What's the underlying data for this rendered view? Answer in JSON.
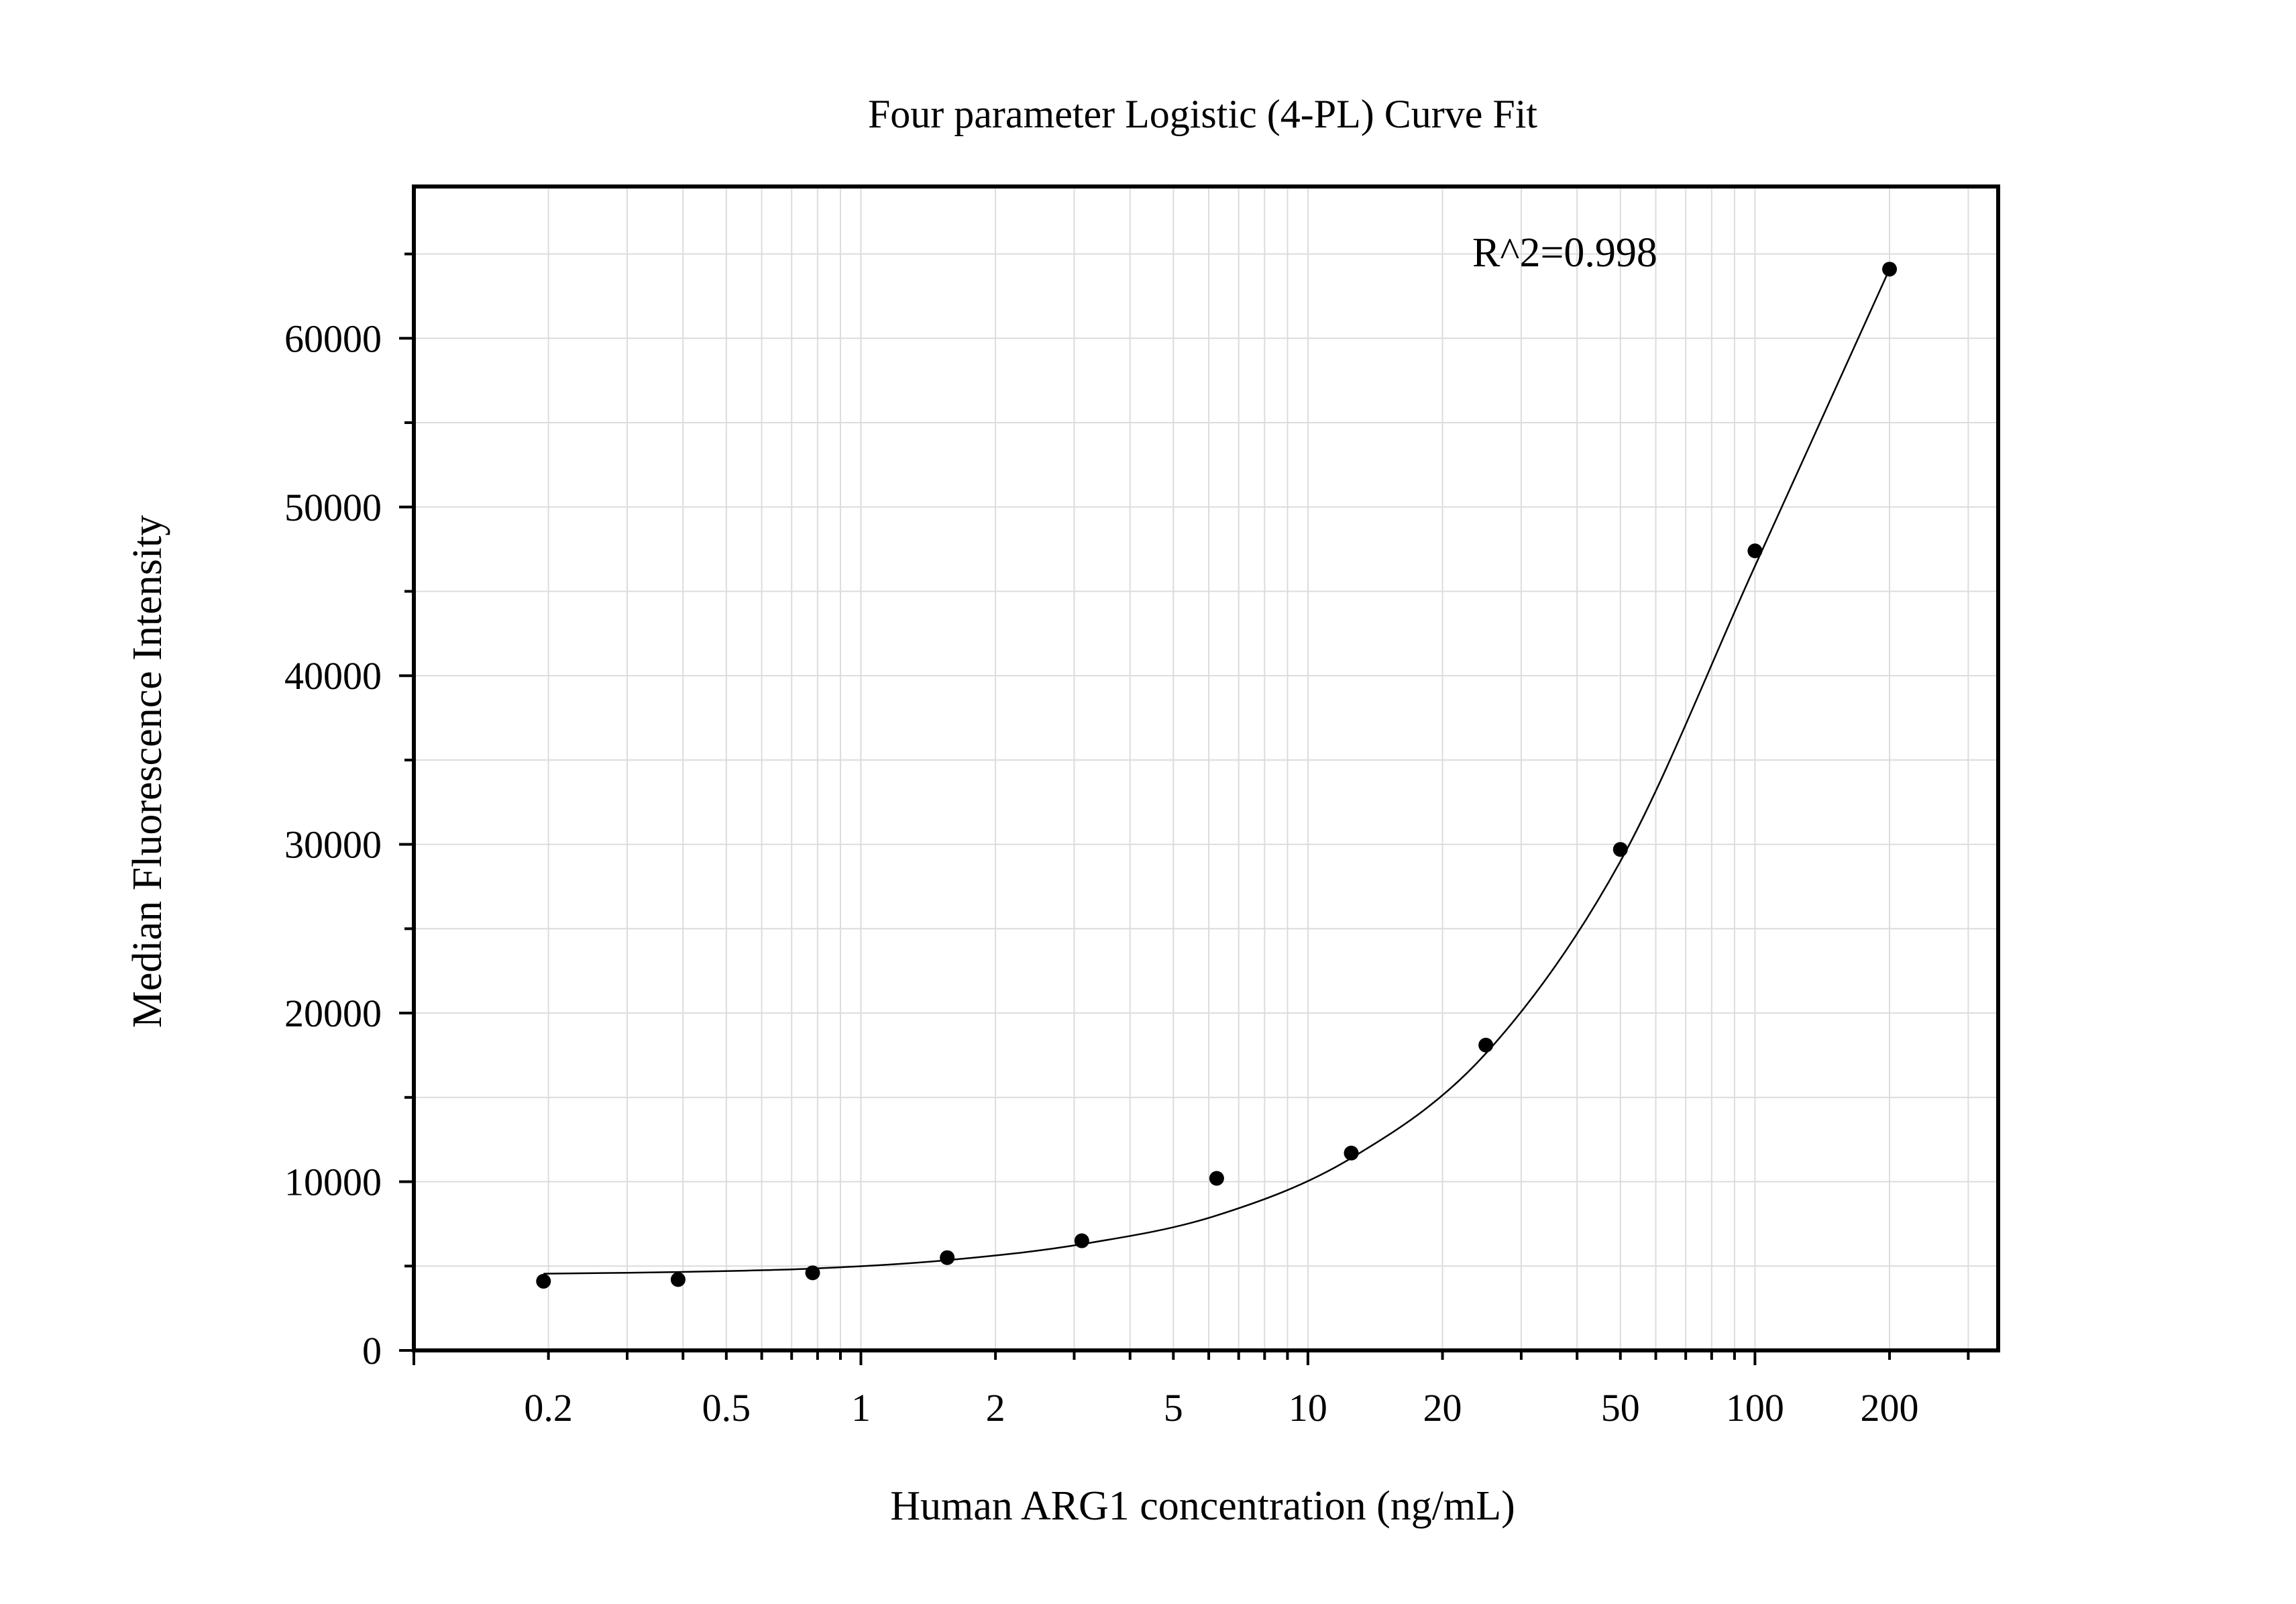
{
  "chart_data": {
    "type": "scatter",
    "title": "Four parameter Logistic (4-PL) Curve Fit",
    "xlabel": "Human ARG1 concentration (ng/mL)",
    "ylabel": "Median Fluorescence Intensity",
    "x_scale": "log",
    "xlim": [
      0.1,
      350
    ],
    "ylim": [
      0,
      69000
    ],
    "grid": true,
    "x_ticks": [
      {
        "value": 0.2,
        "label": "0.2"
      },
      {
        "value": 0.5,
        "label": "0.5"
      },
      {
        "value": 1,
        "label": "1"
      },
      {
        "value": 2,
        "label": "2"
      },
      {
        "value": 5,
        "label": "5"
      },
      {
        "value": 10,
        "label": "10"
      },
      {
        "value": 20,
        "label": "20"
      },
      {
        "value": 50,
        "label": "50"
      },
      {
        "value": 100,
        "label": "100"
      },
      {
        "value": 200,
        "label": "200"
      }
    ],
    "y_ticks": [
      {
        "value": 0,
        "label": "0"
      },
      {
        "value": 10000,
        "label": "10000"
      },
      {
        "value": 20000,
        "label": "20000"
      },
      {
        "value": 30000,
        "label": "30000"
      },
      {
        "value": 40000,
        "label": "40000"
      },
      {
        "value": 50000,
        "label": "50000"
      },
      {
        "value": 60000,
        "label": "60000"
      }
    ],
    "points": [
      {
        "x": 0.195,
        "y": 4100
      },
      {
        "x": 0.39,
        "y": 4200
      },
      {
        "x": 0.78,
        "y": 4600
      },
      {
        "x": 1.56,
        "y": 5500
      },
      {
        "x": 3.12,
        "y": 6500
      },
      {
        "x": 6.25,
        "y": 10200
      },
      {
        "x": 12.5,
        "y": 11700
      },
      {
        "x": 25,
        "y": 18100
      },
      {
        "x": 50,
        "y": 29700
      },
      {
        "x": 100,
        "y": 47400
      },
      {
        "x": 200,
        "y": 64100
      }
    ],
    "fit_curve": [
      {
        "x": 0.195,
        "y": 4550
      },
      {
        "x": 0.39,
        "y": 4650
      },
      {
        "x": 0.78,
        "y": 4850
      },
      {
        "x": 1.56,
        "y": 5350
      },
      {
        "x": 3.12,
        "y": 6300
      },
      {
        "x": 6.25,
        "y": 8000
      },
      {
        "x": 12.5,
        "y": 11400
      },
      {
        "x": 25,
        "y": 17600
      },
      {
        "x": 50,
        "y": 29000
      },
      {
        "x": 100,
        "y": 46500
      },
      {
        "x": 200,
        "y": 64100
      }
    ],
    "annotation": "R^2=0.998"
  }
}
